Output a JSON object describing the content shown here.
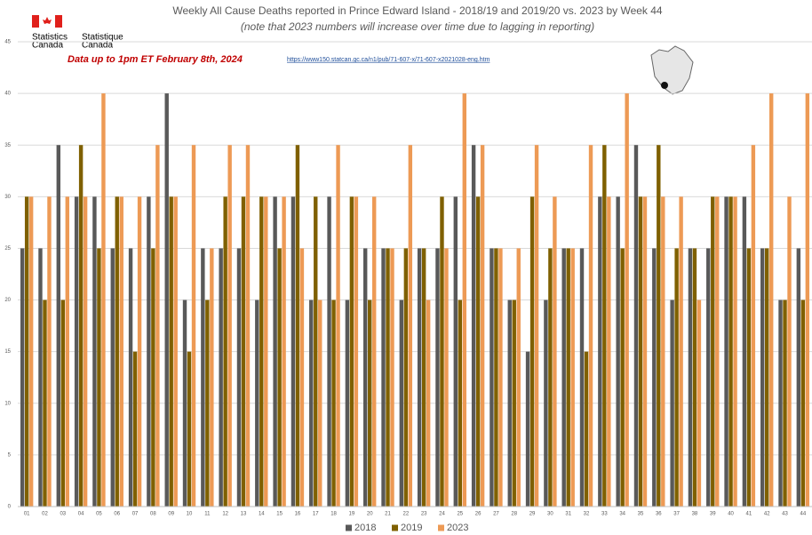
{
  "chart_data": {
    "type": "bar",
    "title": "Weekly All Cause Deaths reported in Prince Edward Island - 2018/19 and 2019/20 vs. 2023 by Week 44",
    "subtitle": "(note that 2023 numbers will increase over time due to lagging in reporting)",
    "note": "Data up to 1pm ET February 8th, 2024",
    "source_url": "https://www150.statcan.gc.ca/n1/pub/71-607-x/71-607-x2021028-eng.htm",
    "logo_text": [
      "Statistics",
      "Canada",
      "Statistique",
      "Canada"
    ],
    "categories": [
      "01",
      "02",
      "03",
      "04",
      "05",
      "06",
      "07",
      "08",
      "09",
      "10",
      "11",
      "12",
      "13",
      "14",
      "15",
      "16",
      "17",
      "18",
      "19",
      "20",
      "21",
      "22",
      "23",
      "24",
      "25",
      "26",
      "27",
      "28",
      "29",
      "30",
      "31",
      "32",
      "33",
      "34",
      "35",
      "36",
      "37",
      "38",
      "39",
      "40",
      "41",
      "42",
      "43",
      "44"
    ],
    "series": [
      {
        "name": "2018",
        "color": "#595959",
        "values": [
          25,
          25,
          35,
          30,
          30,
          25,
          25,
          30,
          40,
          20,
          25,
          25,
          25,
          20,
          30,
          30,
          20,
          30,
          20,
          25,
          25,
          20,
          25,
          25,
          30,
          35,
          25,
          20,
          15,
          20,
          25,
          25,
          30,
          30,
          35,
          25,
          20,
          25,
          25,
          30,
          30,
          25,
          20,
          25
        ]
      },
      {
        "name": "2019",
        "color": "#7f6000",
        "values": [
          30,
          20,
          20,
          35,
          25,
          30,
          15,
          25,
          30,
          15,
          20,
          30,
          30,
          30,
          25,
          35,
          30,
          20,
          30,
          20,
          25,
          25,
          25,
          30,
          20,
          30,
          25,
          20,
          30,
          25,
          25,
          15,
          35,
          25,
          30,
          35,
          25,
          25,
          30,
          30,
          25,
          25,
          20,
          20
        ]
      },
      {
        "name": "2023",
        "color": "#ed9a55",
        "values": [
          30,
          30,
          30,
          30,
          40,
          30,
          30,
          35,
          30,
          35,
          25,
          35,
          35,
          30,
          30,
          25,
          20,
          35,
          30,
          30,
          25,
          35,
          20,
          25,
          40,
          35,
          25,
          25,
          35,
          30,
          25,
          35,
          30,
          40,
          30,
          30,
          30,
          20,
          30,
          30,
          35,
          40,
          30,
          40
        ]
      }
    ],
    "ylim": [
      0,
      45
    ],
    "yticks": [
      0,
      5,
      10,
      15,
      20,
      25,
      30,
      35,
      40,
      45
    ],
    "grid": true,
    "legend": "bottom"
  }
}
